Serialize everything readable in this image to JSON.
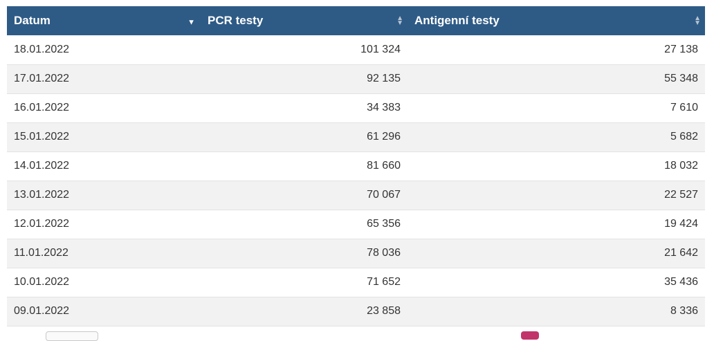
{
  "table": {
    "headers": [
      {
        "label": "Datum",
        "sort": "desc"
      },
      {
        "label": "PCR testy",
        "sort": "both"
      },
      {
        "label": "Antigenní testy",
        "sort": "both"
      }
    ],
    "rows": [
      [
        "18.01.2022",
        "101 324",
        "27 138"
      ],
      [
        "17.01.2022",
        "92 135",
        "55 348"
      ],
      [
        "16.01.2022",
        "34 383",
        "7 610"
      ],
      [
        "15.01.2022",
        "61 296",
        "5 682"
      ],
      [
        "14.01.2022",
        "81 660",
        "18 032"
      ],
      [
        "13.01.2022",
        "70 067",
        "22 527"
      ],
      [
        "12.01.2022",
        "65 356",
        "19 424"
      ],
      [
        "11.01.2022",
        "78 036",
        "21 642"
      ],
      [
        "10.01.2022",
        "71 652",
        "35 436"
      ],
      [
        "09.01.2022",
        "23 858",
        "8 336"
      ]
    ]
  },
  "colors": {
    "header_bg": "#2e5b86",
    "row_alt": "#f2f2f2",
    "accent_pink": "#c1346b"
  },
  "icons": {
    "sort_desc": "triangle-down-icon",
    "sort_both": "sort-updown-icon"
  }
}
